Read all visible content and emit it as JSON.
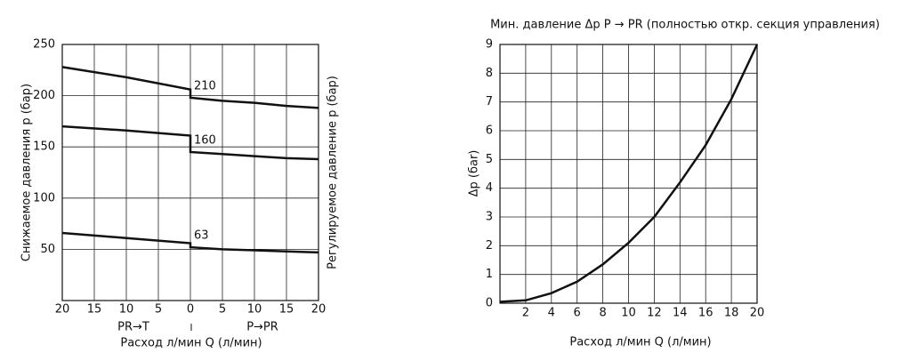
{
  "chart_data": [
    {
      "type": "line",
      "y_label": "Снижаемое давления р (бар)",
      "y2_label": "Регулируемое давление р (бар)",
      "x_label": "Расход л/мин Q (л/мин)",
      "left_direction": "PR→T",
      "right_direction": "P→PR",
      "xlim": [
        -20,
        20
      ],
      "xticks": [
        {
          "value": -20,
          "label": "20"
        },
        {
          "value": -15,
          "label": "15"
        },
        {
          "value": -10,
          "label": "10"
        },
        {
          "value": -5,
          "label": "5"
        },
        0,
        5,
        10,
        15,
        20
      ],
      "ylim": [
        0,
        250
      ],
      "yticks": [
        50,
        100,
        150,
        200,
        250
      ],
      "grid": true,
      "series": [
        {
          "label": "210",
          "color": "#111111",
          "x": [
            -20,
            -10,
            0,
            0,
            5,
            10,
            15,
            20
          ],
          "values": [
            228,
            218,
            206,
            198,
            195,
            193,
            190,
            188
          ]
        },
        {
          "label": "160",
          "color": "#111111",
          "x": [
            -20,
            -10,
            0,
            0,
            5,
            10,
            15,
            20
          ],
          "values": [
            170,
            166,
            161,
            145,
            143,
            141,
            139,
            138
          ]
        },
        {
          "label": "63",
          "color": "#111111",
          "x": [
            -20,
            -10,
            0,
            0,
            5,
            10,
            15,
            20
          ],
          "values": [
            66,
            61,
            56,
            52,
            50,
            49,
            48,
            47
          ]
        }
      ]
    },
    {
      "type": "line",
      "title": "Мин. давление Δp P → PR (полностью откр. секция управления)",
      "y_label": "Δp (бar)",
      "x_label": "Расход л/мин Q (л/мин)",
      "xlim": [
        0,
        20
      ],
      "xticks": [
        2,
        4,
        6,
        8,
        10,
        12,
        14,
        16,
        18,
        20
      ],
      "ylim": [
        0,
        9
      ],
      "yticks": [
        0,
        1,
        2,
        3,
        4,
        5,
        6,
        7,
        8,
        9
      ],
      "grid": true,
      "series": [
        {
          "color": "#111111",
          "x": [
            0,
            2,
            4,
            6,
            8,
            10,
            12,
            14,
            16,
            18,
            20
          ],
          "values": [
            0.05,
            0.1,
            0.35,
            0.75,
            1.35,
            2.1,
            3.0,
            4.2,
            5.5,
            7.1,
            9.0
          ]
        }
      ]
    }
  ]
}
